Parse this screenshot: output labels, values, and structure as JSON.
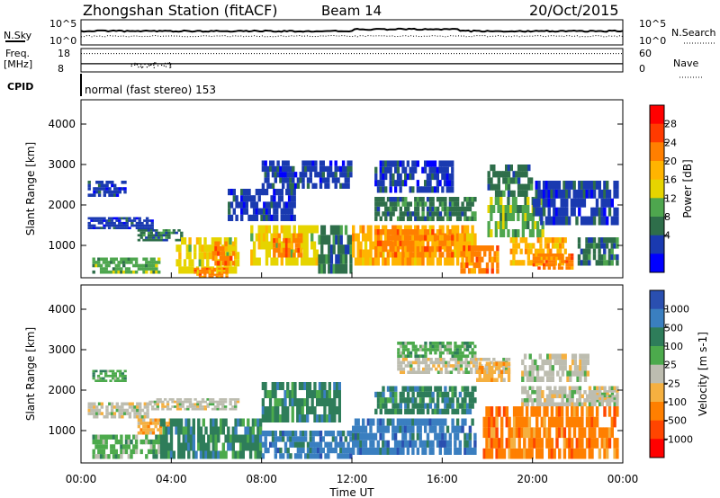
{
  "header": {
    "title": "Zhongshan Station (fitACF)",
    "beam": "Beam 14",
    "date": "20/Oct/2015"
  },
  "top_panels": {
    "nsky_label": "N.Sky",
    "nsky_ticks": [
      "10^5",
      "10^0"
    ],
    "nsearch_label": "N.Search",
    "nsearch_ticks": [
      "10^5",
      "10^0"
    ],
    "freq_label": "Freq.",
    "freq_unit": "[MHz]",
    "freq_ticks": [
      "18",
      "8"
    ],
    "nave_label": "Nave",
    "nave_ticks": [
      "60",
      "0"
    ],
    "cpid_label": "CPID",
    "cpid_text": "normal (fast stereo) 153"
  },
  "chart_data": [
    {
      "type": "heatmap",
      "name": "power-panel",
      "ylabel": "Slant Range [km]",
      "yticks": [
        "4000",
        "3000",
        "2000",
        "1000"
      ],
      "ytick_values": [
        4000,
        3000,
        2000,
        1000
      ],
      "ylim": [
        200,
        4600
      ],
      "colorbar_label": "Power [dB]",
      "colorbar_ticks": [
        "28",
        "24",
        "20",
        "16",
        "12",
        "8",
        "4"
      ],
      "colorbar_colors": [
        "#ff0000",
        "#ff3a00",
        "#ff7f00",
        "#ffb400",
        "#e6d400",
        "#4ea64e",
        "#2e6e4a",
        "#1a3ab0",
        "#0000ff"
      ],
      "blobs": [
        {
          "t0": 0.3,
          "t1": 3.2,
          "r0": 1400,
          "r1": 1700,
          "level": 1
        },
        {
          "t0": 0.3,
          "t1": 2.0,
          "r0": 2200,
          "r1": 2600,
          "level": 1
        },
        {
          "t0": 0.5,
          "t1": 3.5,
          "r0": 300,
          "r1": 700,
          "level": 3
        },
        {
          "t0": 2.5,
          "t1": 4.5,
          "r0": 1100,
          "r1": 1400,
          "level": 2
        },
        {
          "t0": 4.2,
          "t1": 7.0,
          "r0": 300,
          "r1": 1200,
          "level": 4
        },
        {
          "t0": 5.0,
          "t1": 6.5,
          "r0": 200,
          "r1": 450,
          "level": 6
        },
        {
          "t0": 5.8,
          "t1": 6.8,
          "r0": 500,
          "r1": 1100,
          "level": 6
        },
        {
          "t0": 7.5,
          "t1": 10.5,
          "r0": 500,
          "r1": 1500,
          "level": 4
        },
        {
          "t0": 8.5,
          "t1": 9.8,
          "r0": 700,
          "r1": 1300,
          "level": 6
        },
        {
          "t0": 6.5,
          "t1": 9.5,
          "r0": 1600,
          "r1": 2400,
          "level": 1
        },
        {
          "t0": 8.0,
          "t1": 12.0,
          "r0": 2400,
          "r1": 3100,
          "level": 1
        },
        {
          "t0": 10.5,
          "t1": 12.0,
          "r0": 300,
          "r1": 1500,
          "level": 2
        },
        {
          "t0": 12.0,
          "t1": 17.5,
          "r0": 500,
          "r1": 1500,
          "level": 5
        },
        {
          "t0": 13.0,
          "t1": 16.5,
          "r0": 700,
          "r1": 1400,
          "level": 6
        },
        {
          "t0": 16.8,
          "t1": 18.5,
          "r0": 300,
          "r1": 1000,
          "level": 6
        },
        {
          "t0": 13.0,
          "t1": 17.5,
          "r0": 1600,
          "r1": 2200,
          "level": 2
        },
        {
          "t0": 13.0,
          "t1": 16.5,
          "r0": 2300,
          "r1": 3100,
          "level": 1
        },
        {
          "t0": 18.0,
          "t1": 20.5,
          "r0": 1200,
          "r1": 2200,
          "level": 3
        },
        {
          "t0": 19.0,
          "t1": 21.5,
          "r0": 500,
          "r1": 1200,
          "level": 5
        },
        {
          "t0": 20.0,
          "t1": 21.8,
          "r0": 400,
          "r1": 800,
          "level": 6
        },
        {
          "t0": 18.0,
          "t1": 20.0,
          "r0": 2200,
          "r1": 3000,
          "level": 2
        },
        {
          "t0": 20.0,
          "t1": 23.8,
          "r0": 1500,
          "r1": 2600,
          "level": 1
        },
        {
          "t0": 22.0,
          "t1": 23.8,
          "r0": 500,
          "r1": 1200,
          "level": 2
        }
      ]
    },
    {
      "type": "heatmap",
      "name": "velocity-panel",
      "ylabel": "Slant Range [km]",
      "yticks": [
        "4000",
        "3000",
        "2000",
        "1000"
      ],
      "ytick_values": [
        4000,
        3000,
        2000,
        1000
      ],
      "ylim": [
        200,
        4600
      ],
      "xlabel": "Time UT",
      "xticks": [
        "00:00",
        "04:00",
        "08:00",
        "12:00",
        "16:00",
        "20:00",
        "00:00"
      ],
      "xtick_values": [
        0,
        4,
        8,
        12,
        16,
        20,
        24
      ],
      "colorbar_label": "Velocity [m s-1]",
      "colorbar_ticks": [
        "1000",
        "500",
        "100",
        "25",
        "-25",
        "-100",
        "-500",
        "-1000"
      ],
      "colorbar_colors": [
        "#2a4fb0",
        "#3a7fc0",
        "#2e7d5a",
        "#4caa4c",
        "#bdbdb0",
        "#f5b040",
        "#ff7f00",
        "#ff4500",
        "#ff0000"
      ],
      "blobs": [
        {
          "t0": 0.3,
          "t1": 3.0,
          "r0": 1300,
          "r1": 1700,
          "level": 4
        },
        {
          "t0": 3.0,
          "t1": 7.0,
          "r0": 1500,
          "r1": 1800,
          "level": 4
        },
        {
          "t0": 0.5,
          "t1": 3.5,
          "r0": 300,
          "r1": 900,
          "level": 5
        },
        {
          "t0": 0.5,
          "t1": 2.0,
          "r0": 2200,
          "r1": 2500,
          "level": 5
        },
        {
          "t0": 2.5,
          "t1": 4.0,
          "r0": 900,
          "r1": 1300,
          "level": 3
        },
        {
          "t0": 3.5,
          "t1": 8.0,
          "r0": 300,
          "r1": 1300,
          "level": 6
        },
        {
          "t0": 8.0,
          "t1": 12.0,
          "r0": 300,
          "r1": 1000,
          "level": 7
        },
        {
          "t0": 8.0,
          "t1": 11.5,
          "r0": 1200,
          "r1": 2200,
          "level": 6
        },
        {
          "t0": 12.0,
          "t1": 17.5,
          "r0": 400,
          "r1": 1300,
          "level": 7
        },
        {
          "t0": 13.0,
          "t1": 17.5,
          "r0": 1400,
          "r1": 2100,
          "level": 6
        },
        {
          "t0": 14.0,
          "t1": 19.0,
          "r0": 2400,
          "r1": 2800,
          "level": 4
        },
        {
          "t0": 14.0,
          "t1": 17.5,
          "r0": 2800,
          "r1": 3200,
          "level": 5
        },
        {
          "t0": 17.5,
          "t1": 19.0,
          "r0": 2200,
          "r1": 2700,
          "level": 3
        },
        {
          "t0": 17.8,
          "t1": 23.8,
          "r0": 300,
          "r1": 1600,
          "level": 2
        },
        {
          "t0": 19.5,
          "t1": 23.8,
          "r0": 1600,
          "r1": 2100,
          "level": 4
        },
        {
          "t0": 19.5,
          "t1": 22.5,
          "r0": 2200,
          "r1": 2900,
          "level": 4
        },
        {
          "t0": 22.5,
          "t1": 23.8,
          "r0": 1700,
          "r1": 2000,
          "level": 4
        }
      ]
    }
  ],
  "lines": {
    "nsky_level": 0.55,
    "nsearch_level": 0.35,
    "freq_level": 0.35,
    "nave_level": 0.9
  }
}
